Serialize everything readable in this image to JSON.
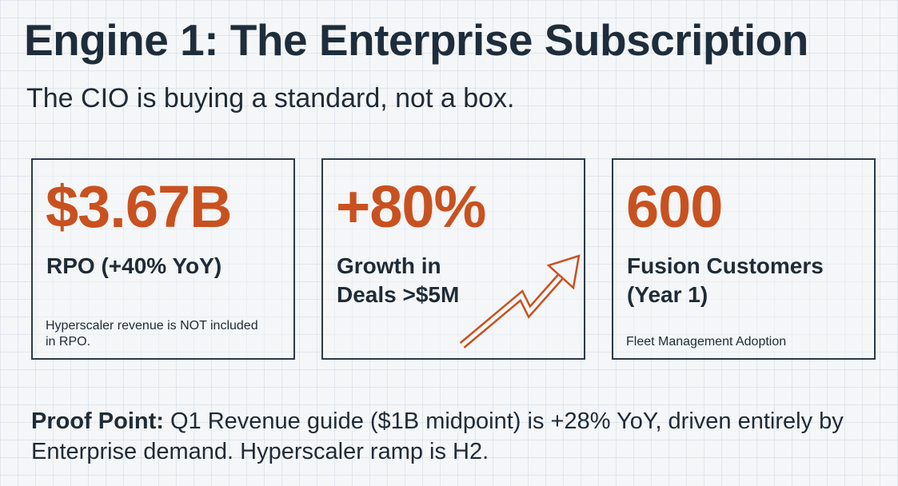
{
  "title": "Engine 1: The Enterprise Subscription",
  "subtitle": "The CIO is buying a standard, not a box.",
  "colors": {
    "accent": "#c9511f",
    "text": "#1f2b36",
    "border": "#2b3a48",
    "background": "#f4f6f8"
  },
  "cards": [
    {
      "metric": "$3.67B",
      "label": "RPO (+40% YoY)",
      "note": "Hyperscaler revenue is NOT included in RPO."
    },
    {
      "metric": "+80%",
      "label_line1": "Growth in",
      "label_line2": "Deals >$5M",
      "icon": "trend-up-arrow-icon"
    },
    {
      "metric": "600",
      "label_line1": "Fusion Customers",
      "label_line2": "(Year 1)",
      "note": "Fleet Management Adoption"
    }
  ],
  "proof": {
    "label": "Proof Point:",
    "text": " Q1 Revenue guide ($1B midpoint) is +28% YoY, driven entirely by Enterprise demand. Hyperscaler ramp is H2."
  }
}
